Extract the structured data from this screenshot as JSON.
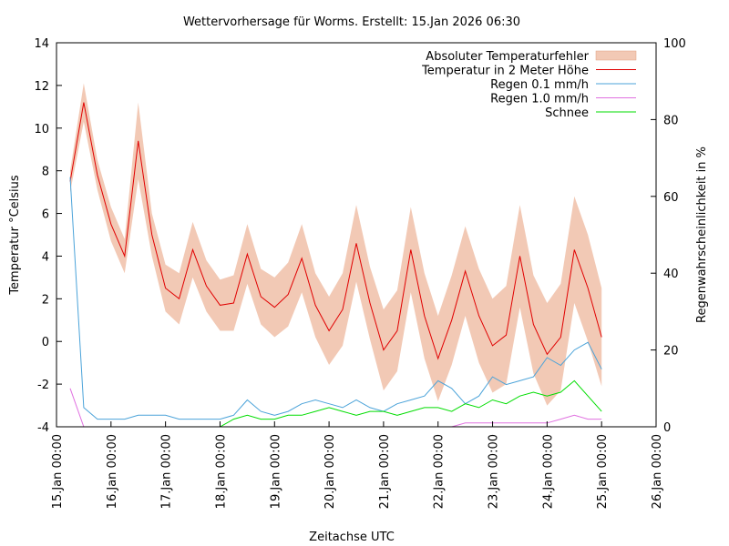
{
  "chart_data": {
    "type": "line",
    "title": "Wettervorhersage für Worms. Erstellt: 15.Jan 2026 06:30",
    "x_label": "Zeitachse UTC",
    "y_label": "Temperatur °Celsius",
    "y2_label": "Regenwahrscheinlichkeit in %",
    "xlim": [
      "15.Jan 00:00",
      "26.Jan 00:00"
    ],
    "xticks": [
      "15.Jan 00:00",
      "16.Jan 00:00",
      "17.Jan 00:00",
      "18.Jan 00:00",
      "19.Jan 00:00",
      "20.Jan 00:00",
      "21.Jan 00:00",
      "22.Jan 00:00",
      "23.Jan 00:00",
      "24.Jan 00:00",
      "25.Jan 00:00",
      "26.Jan 00:00"
    ],
    "ylim": [
      -4,
      14
    ],
    "yticks": [
      -4,
      -2,
      0,
      2,
      4,
      6,
      8,
      10,
      12,
      14
    ],
    "y2lim": [
      0,
      100
    ],
    "y2ticks": [
      0,
      20,
      40,
      60,
      80,
      100
    ],
    "legend": "top-right",
    "x": [
      "15.Jan 06:00",
      "15.Jan 12:00",
      "15.Jan 18:00",
      "16.Jan 00:00",
      "16.Jan 06:00",
      "16.Jan 12:00",
      "16.Jan 18:00",
      "17.Jan 00:00",
      "17.Jan 06:00",
      "17.Jan 12:00",
      "17.Jan 18:00",
      "18.Jan 00:00",
      "18.Jan 06:00",
      "18.Jan 12:00",
      "18.Jan 18:00",
      "19.Jan 00:00",
      "19.Jan 06:00",
      "19.Jan 12:00",
      "19.Jan 18:00",
      "20.Jan 00:00",
      "20.Jan 06:00",
      "20.Jan 12:00",
      "20.Jan 18:00",
      "21.Jan 00:00",
      "21.Jan 06:00",
      "21.Jan 12:00",
      "21.Jan 18:00",
      "22.Jan 00:00",
      "22.Jan 06:00",
      "22.Jan 12:00",
      "22.Jan 18:00",
      "23.Jan 00:00",
      "23.Jan 06:00",
      "23.Jan 12:00",
      "23.Jan 18:00",
      "24.Jan 00:00",
      "24.Jan 06:00",
      "24.Jan 12:00",
      "24.Jan 18:00",
      "25.Jan 00:00"
    ],
    "series": [
      {
        "name": "Absoluter Temperaturfehler",
        "color": "#f2c9b5",
        "style": "band",
        "values": [
          0.5,
          0.9,
          0.7,
          0.8,
          0.8,
          1.8,
          1.0,
          1.1,
          1.2,
          1.3,
          1.2,
          1.2,
          1.3,
          1.4,
          1.3,
          1.4,
          1.5,
          1.6,
          1.5,
          1.6,
          1.7,
          1.8,
          1.7,
          1.9,
          1.9,
          2.0,
          2.0,
          2.0,
          2.1,
          2.1,
          2.2,
          2.2,
          2.3,
          2.4,
          2.3,
          2.4,
          2.5,
          2.5,
          2.5,
          2.3
        ]
      },
      {
        "name": "Temperatur in 2 Meter Höhe",
        "color": "#e00000",
        "style": "line",
        "values": [
          7.5,
          11.2,
          7.8,
          5.5,
          4.0,
          9.4,
          5.0,
          2.5,
          2.0,
          4.3,
          2.6,
          1.7,
          1.8,
          4.1,
          2.1,
          1.6,
          2.2,
          3.9,
          1.7,
          0.5,
          1.5,
          4.6,
          1.8,
          -0.4,
          0.5,
          4.3,
          1.2,
          -0.8,
          1.0,
          3.3,
          1.2,
          -0.2,
          0.3,
          4.0,
          0.8,
          -0.6,
          0.2,
          4.3,
          2.5,
          0.2
        ]
      },
      {
        "name": "Regen 0.1 mm/h",
        "color": "#4ba3d9",
        "style": "line",
        "axis": "y2",
        "values": [
          65,
          5,
          2,
          2,
          2,
          3,
          3,
          3,
          2,
          2,
          2,
          2,
          3,
          7,
          4,
          3,
          4,
          6,
          7,
          6,
          5,
          7,
          5,
          4,
          6,
          7,
          8,
          12,
          10,
          6,
          8,
          13,
          11,
          12,
          13,
          18,
          16,
          20,
          22,
          15
        ]
      },
      {
        "name": "Regen 1.0 mm/h",
        "color": "#e070e0",
        "style": "line",
        "axis": "y2",
        "values": [
          10,
          0,
          0,
          0,
          0,
          0,
          0,
          0,
          0,
          0,
          0,
          0,
          0,
          0,
          0,
          0,
          0,
          0,
          0,
          0,
          0,
          0,
          0,
          0,
          0,
          0,
          0,
          0,
          0,
          1,
          1,
          1,
          1,
          1,
          1,
          1,
          2,
          3,
          2,
          2
        ]
      },
      {
        "name": "Schnee",
        "color": "#00dd00",
        "style": "line",
        "axis": "y2",
        "values": [
          0,
          0,
          0,
          0,
          0,
          0,
          0,
          0,
          0,
          0,
          0,
          0,
          2,
          3,
          2,
          2,
          3,
          3,
          4,
          5,
          4,
          3,
          4,
          4,
          3,
          4,
          5,
          5,
          4,
          6,
          5,
          7,
          6,
          8,
          9,
          8,
          9,
          12,
          8,
          4
        ]
      }
    ]
  }
}
